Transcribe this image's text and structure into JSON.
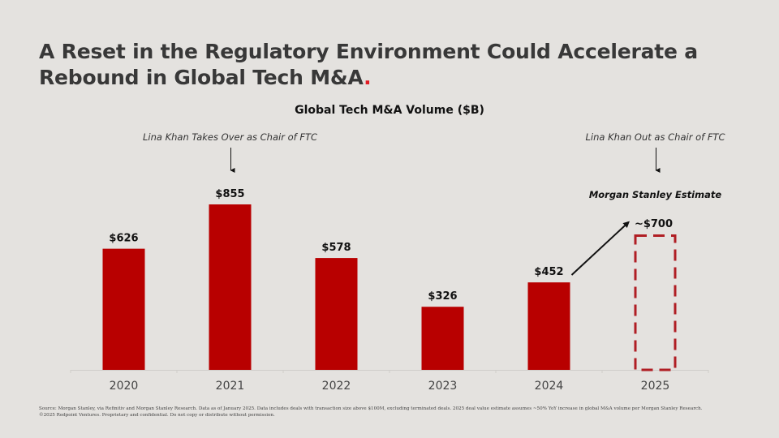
{
  "slide": {
    "title_main": "A Reset in the Regulatory Environment Could Accelerate a Rebound in Global Tech M&A",
    "title_dot": ".",
    "footnote_line1": "Source: Morgan Stanley, via Refinitiv and Morgan Stanley Research. Data as of January 2025. Data includes deals with transaction size above $100M, excluding terminated deals. 2025 deal value estimate assumes ~50% YoY increase in global M&A volume per Morgan Stanley Research.",
    "footnote_line2": "©2025 Redpoint Ventures. Proprietary and confidential. Do not copy or distribute without permission."
  },
  "colors": {
    "bar": "#b80000",
    "estimate_border": "#b01e24",
    "text_dark": "#111111",
    "title": "#383838",
    "accent_dot": "#e21c24",
    "background": "#e4e2df"
  },
  "chart_data": {
    "type": "bar",
    "title": "Global Tech M&A Volume ($B)",
    "xlabel": "",
    "ylabel": "",
    "categories": [
      "2020",
      "2021",
      "2022",
      "2023",
      "2024",
      "2025"
    ],
    "values": [
      626,
      855,
      578,
      326,
      452,
      700
    ],
    "data_labels": [
      "$626",
      "$855",
      "$578",
      "$326",
      "$452",
      "~$700"
    ],
    "estimated": [
      false,
      false,
      false,
      false,
      false,
      true
    ],
    "ylim": [
      0,
      855
    ],
    "grid": false,
    "annotations": [
      {
        "text": "Lina Khan Takes Over as Chair of FTC",
        "category": "2021",
        "arrow": "down"
      },
      {
        "text": "Lina Khan Out as Chair of FTC",
        "category": "2025",
        "arrow": "down"
      },
      {
        "text": "Morgan Stanley Estimate",
        "category": "2025",
        "style": "bold-italic"
      },
      {
        "text": "",
        "from": "2024",
        "to": "2025",
        "arrow": "up-right"
      }
    ]
  }
}
